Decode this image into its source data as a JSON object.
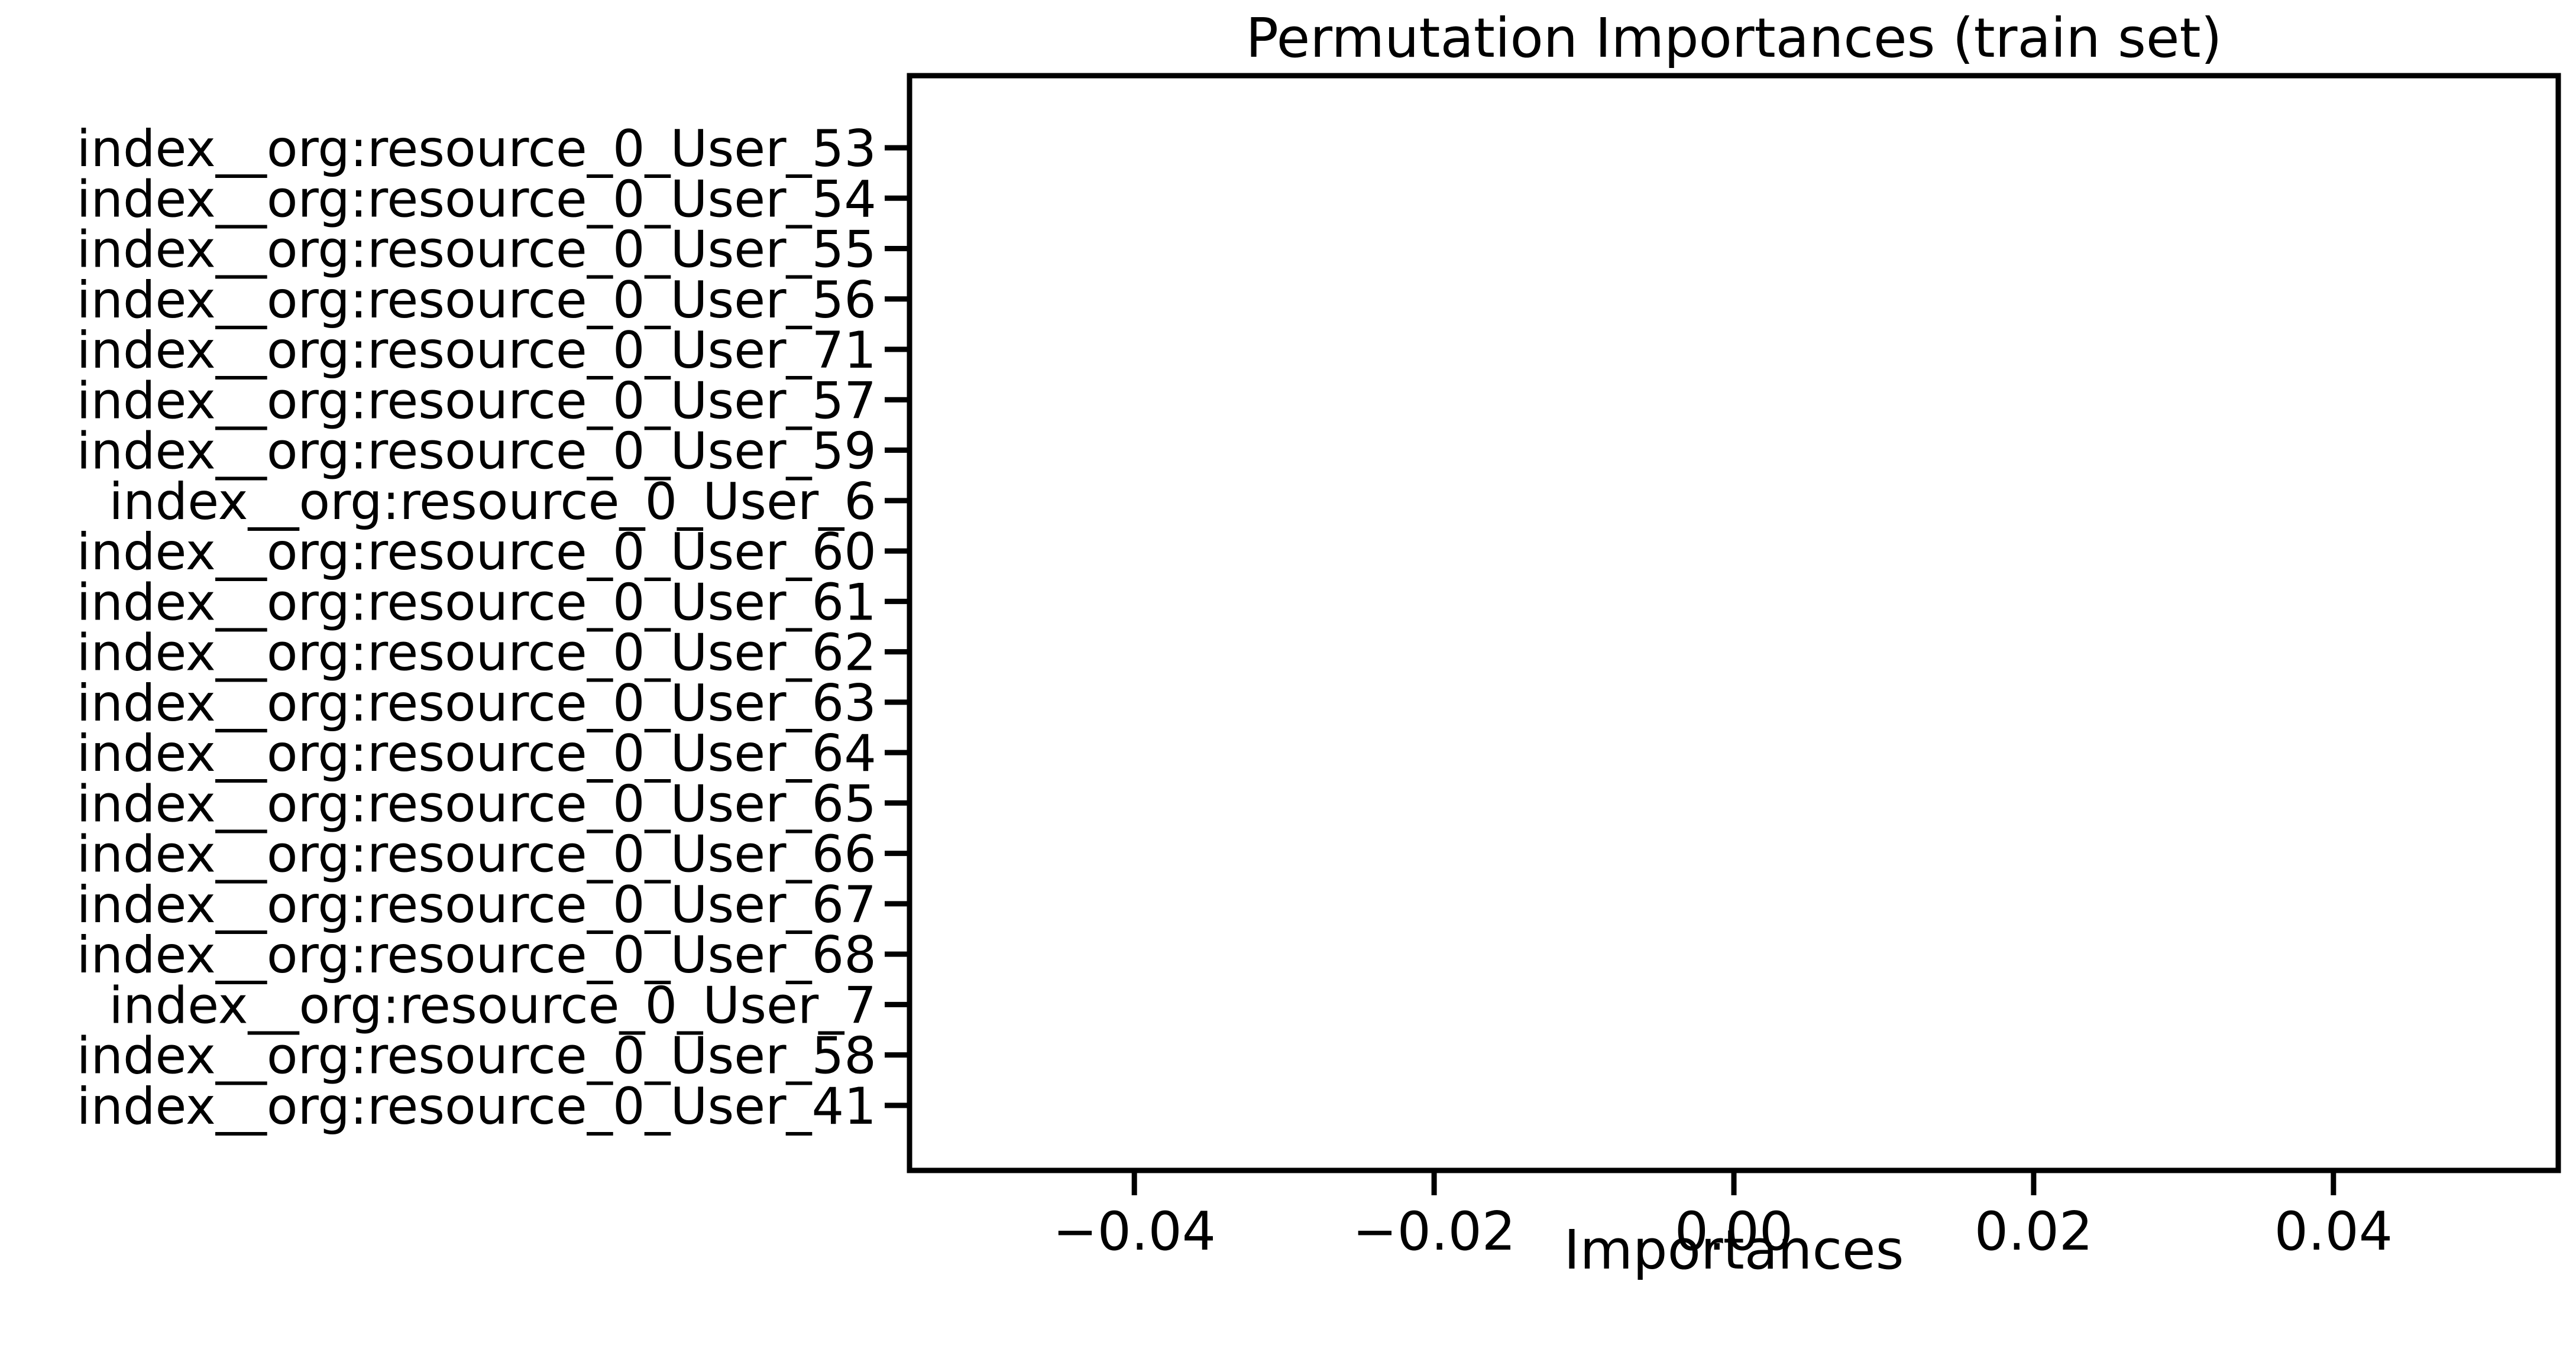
{
  "chart_data": {
    "type": "bar",
    "orientation": "horizontal",
    "title": "Permutation Importances (train set)",
    "xlabel": "Importances",
    "ylabel": "",
    "xlim": [
      -0.055,
      0.055
    ],
    "xticks": [
      -0.04,
      -0.02,
      0.0,
      0.02,
      0.04
    ],
    "xtick_labels": [
      "−0.04",
      "−0.02",
      "0.00",
      "0.02",
      "0.04"
    ],
    "grid": false,
    "categories": [
      "index__org:resource_0_User_53",
      "index__org:resource_0_User_54",
      "index__org:resource_0_User_55",
      "index__org:resource_0_User_56",
      "index__org:resource_0_User_71",
      "index__org:resource_0_User_57",
      "index__org:resource_0_User_59",
      "index__org:resource_0_User_6",
      "index__org:resource_0_User_60",
      "index__org:resource_0_User_61",
      "index__org:resource_0_User_62",
      "index__org:resource_0_User_63",
      "index__org:resource_0_User_64",
      "index__org:resource_0_User_65",
      "index__org:resource_0_User_66",
      "index__org:resource_0_User_67",
      "index__org:resource_0_User_68",
      "index__org:resource_0_User_7",
      "index__org:resource_0_User_58",
      "index__org:resource_0_User_41"
    ],
    "values": [
      0,
      0,
      0,
      0,
      0,
      0,
      0,
      0,
      0,
      0,
      0,
      0,
      0,
      0,
      0,
      0,
      0,
      0,
      0,
      0
    ],
    "bar_color": "#1f77b4"
  }
}
